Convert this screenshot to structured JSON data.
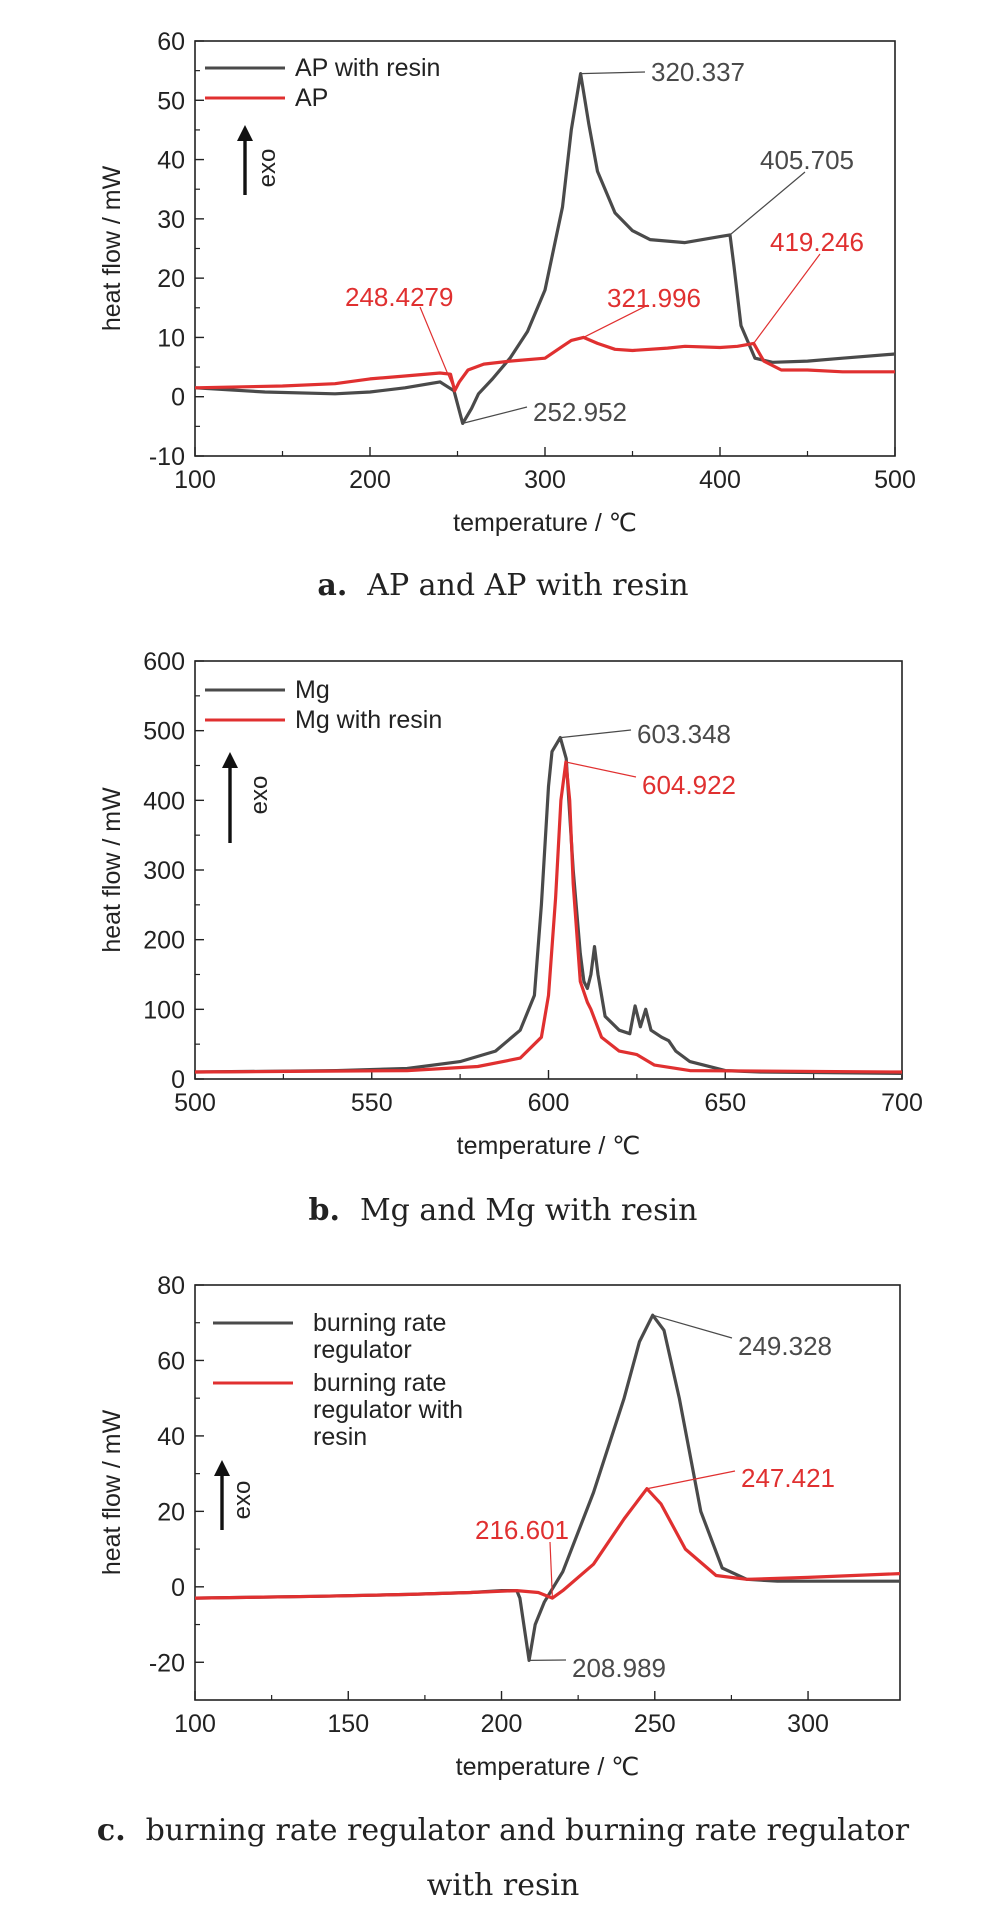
{
  "colors": {
    "dark": "#4a4a4a",
    "red": "#e03030"
  },
  "icons": {
    "exo": "up-arrow-icon"
  },
  "chart_data": [
    {
      "type": "line",
      "xlabel": "temperature / ℃",
      "ylabel": "heat flow / mW",
      "xlim": [
        100,
        500
      ],
      "ylim": [
        -10,
        60
      ],
      "xticks": [
        100,
        200,
        300,
        400,
        500
      ],
      "yticks": [
        -10,
        0,
        10,
        20,
        30,
        40,
        50,
        60
      ],
      "exo_label": "exo",
      "legend_position": "top-left",
      "caption_letter": "a",
      "caption_text": "AP and AP with resin",
      "series": [
        {
          "name": "AP with resin",
          "color": "dark",
          "x": [
            100,
            140,
            180,
            200,
            220,
            240,
            248,
            252.952,
            258,
            262,
            270,
            280,
            290,
            300,
            310,
            315,
            320.337,
            325,
            330,
            340,
            350,
            360,
            380,
            400,
            405.705,
            408,
            412,
            420,
            430,
            450,
            470,
            500
          ],
          "y": [
            1.5,
            0.8,
            0.5,
            0.8,
            1.5,
            2.5,
            1.0,
            -4.5,
            -2.0,
            0.5,
            3.0,
            6.5,
            11.0,
            18.0,
            32.0,
            45.0,
            54.5,
            46.0,
            38.0,
            31.0,
            28.0,
            26.5,
            26.0,
            27.0,
            27.3,
            22.0,
            12.0,
            6.5,
            5.8,
            6.0,
            6.5,
            7.2
          ]
        },
        {
          "name": "AP",
          "color": "red",
          "x": [
            100,
            150,
            180,
            200,
            220,
            240,
            246,
            248.4279,
            251,
            256,
            265,
            280,
            300,
            310,
            315,
            321.996,
            330,
            340,
            350,
            370,
            380,
            400,
            410,
            419.246,
            425,
            435,
            450,
            470,
            500
          ],
          "y": [
            1.5,
            1.8,
            2.2,
            3.0,
            3.5,
            4.0,
            3.8,
            1.0,
            2.5,
            4.5,
            5.5,
            6.0,
            6.5,
            8.5,
            9.5,
            10.0,
            9.0,
            8.0,
            7.8,
            8.2,
            8.5,
            8.3,
            8.5,
            9.0,
            6.0,
            4.5,
            4.5,
            4.2,
            4.2
          ]
        }
      ],
      "annotations": [
        {
          "text": "320.337",
          "x": 320.337,
          "y": 54.5,
          "color": "dark"
        },
        {
          "text": "405.705",
          "x": 405.705,
          "y": 27.3,
          "color": "dark"
        },
        {
          "text": "252.952",
          "x": 252.952,
          "y": -4.5,
          "color": "dark"
        },
        {
          "text": "248.4279",
          "x": 248.4279,
          "y": 1.0,
          "color": "red"
        },
        {
          "text": "321.996",
          "x": 321.996,
          "y": 10.0,
          "color": "red"
        },
        {
          "text": "419.246",
          "x": 419.246,
          "y": 9.0,
          "color": "red"
        }
      ]
    },
    {
      "type": "line",
      "xlabel": "temperature / ℃",
      "ylabel": "heat flow / mW",
      "xlim": [
        500,
        700
      ],
      "ylim": [
        0,
        600
      ],
      "xticks": [
        500,
        550,
        600,
        650,
        700
      ],
      "yticks": [
        0,
        100,
        200,
        300,
        400,
        500,
        600
      ],
      "exo_label": "exo",
      "legend_position": "top-left",
      "caption_letter": "b",
      "caption_text": "Mg and Mg with resin",
      "series": [
        {
          "name": "Mg",
          "color": "dark",
          "x": [
            500,
            540,
            560,
            575,
            585,
            592,
            596,
            598,
            600,
            601,
            603.348,
            605,
            607,
            609,
            610,
            611,
            612,
            613,
            614,
            616,
            620,
            623,
            624.5,
            626,
            627.5,
            629,
            632,
            634,
            636,
            640,
            650,
            660,
            700
          ],
          "y": [
            10,
            12,
            15,
            25,
            40,
            70,
            120,
            250,
            420,
            470,
            490,
            460,
            300,
            180,
            140,
            130,
            150,
            190,
            150,
            90,
            70,
            65,
            105,
            75,
            100,
            70,
            60,
            55,
            40,
            25,
            12,
            10,
            8
          ]
        },
        {
          "name": "Mg with resin",
          "color": "red",
          "x": [
            500,
            560,
            580,
            592,
            598,
            600,
            602,
            603.5,
            604.922,
            606,
            607,
            609,
            611,
            612,
            615,
            620,
            625,
            630,
            640,
            700
          ],
          "y": [
            10,
            12,
            18,
            30,
            60,
            120,
            260,
            400,
            455,
            400,
            280,
            140,
            110,
            100,
            60,
            40,
            35,
            20,
            12,
            10
          ]
        }
      ],
      "annotations": [
        {
          "text": "603.348",
          "x": 603.348,
          "y": 490,
          "color": "dark"
        },
        {
          "text": "604.922",
          "x": 604.922,
          "y": 455,
          "color": "red"
        }
      ]
    },
    {
      "type": "line",
      "xlabel": "temperature / ℃",
      "ylabel": "heat flow / mW",
      "xlim": [
        100,
        330
      ],
      "ylim": [
        -30,
        80
      ],
      "xticks": [
        100,
        150,
        200,
        250,
        300
      ],
      "yticks": [
        -20,
        0,
        20,
        40,
        60,
        80
      ],
      "exo_label": "exo",
      "legend_position": "top-left",
      "caption_letter": "c",
      "caption_text": "burning rate regulator and burning rate regulator",
      "caption_text_2": "with resin",
      "series": [
        {
          "name": "burning rate regulator",
          "color": "dark",
          "x": [
            100,
            140,
            170,
            190,
            200,
            205,
            206,
            208.989,
            211,
            214,
            220,
            230,
            240,
            245,
            249.328,
            253,
            258,
            265,
            272,
            280,
            290,
            310,
            330
          ],
          "y": [
            -3,
            -2.5,
            -2,
            -1.5,
            -1,
            -1,
            -3,
            -19.5,
            -10,
            -4,
            4,
            25,
            50,
            65,
            72,
            68,
            50,
            20,
            5,
            2,
            1.5,
            1.5,
            1.5
          ]
        },
        {
          "name": "burning rate regulator with resin",
          "color": "red",
          "x": [
            100,
            140,
            170,
            190,
            205,
            212,
            216.601,
            220,
            230,
            240,
            247.421,
            252,
            260,
            270,
            280,
            300,
            330
          ],
          "y": [
            -3,
            -2.5,
            -2,
            -1.5,
            -1,
            -1.5,
            -3,
            -1,
            6,
            18,
            26,
            22,
            10,
            3,
            2,
            2.5,
            3.5
          ]
        }
      ],
      "annotations": [
        {
          "text": "249.328",
          "x": 249.328,
          "y": 72,
          "color": "dark"
        },
        {
          "text": "208.989",
          "x": 208.989,
          "y": -19.5,
          "color": "dark"
        },
        {
          "text": "216.601",
          "x": 216.601,
          "y": -3,
          "color": "red"
        },
        {
          "text": "247.421",
          "x": 247.421,
          "y": 26,
          "color": "red"
        }
      ]
    }
  ]
}
